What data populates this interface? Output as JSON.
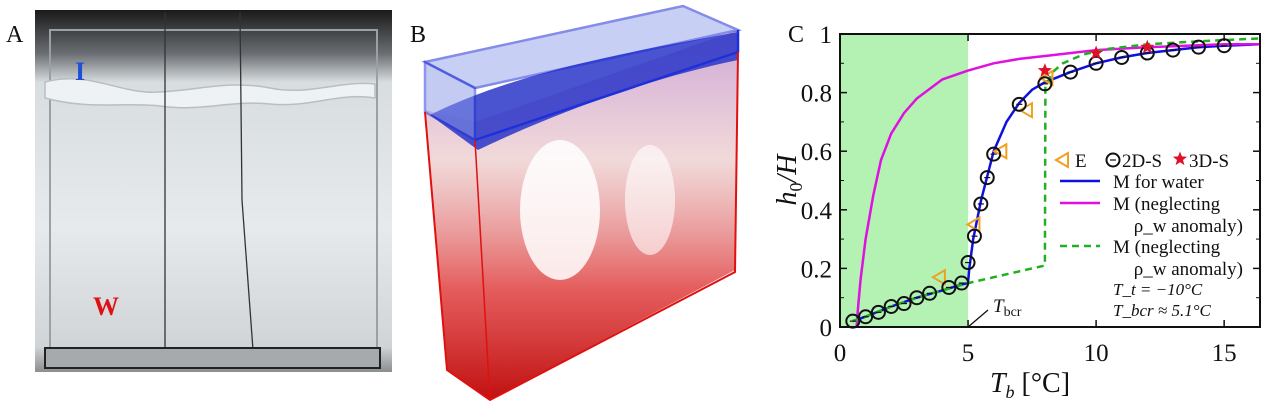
{
  "panels": {
    "a": {
      "label": "A",
      "ice_label": "I",
      "water_label": "W",
      "ice_color": "#1f4fd8",
      "water_color": "#e01010"
    },
    "b": {
      "label": "B",
      "ice_color": "#2a35c8",
      "water_color": "#d81818"
    },
    "c": {
      "label": "C"
    }
  },
  "chart_data": {
    "type": "scatter",
    "xlabel": "T_b [°C]",
    "xlabel_main": "T",
    "xlabel_sub": "b",
    "xlabel_unit": " [°C]",
    "ylabel_main": "h",
    "ylabel_sub": "0",
    "ylabel_rest": "/H",
    "xlim": [
      0,
      16.4
    ],
    "ylim": [
      0,
      1
    ],
    "xticks": [
      0,
      5,
      10,
      15
    ],
    "yticks": [
      0,
      0.2,
      0.4,
      0.6,
      0.8,
      1
    ],
    "ytick_labels": [
      "0",
      "0.2",
      "0.4",
      "0.6",
      "0.8",
      "1"
    ],
    "shaded_region": {
      "x": [
        0,
        5
      ],
      "color": "#b4f2b4"
    },
    "annotation": {
      "main": "T",
      "sub": "bcr",
      "x": 5
    },
    "legend": {
      "position": "right",
      "entries": [
        {
          "label": "E",
          "marker": "triangle-left",
          "color": "#f0a020"
        },
        {
          "label": "2D-S",
          "marker": "circle",
          "color": "#111111"
        },
        {
          "label": "3D-S",
          "marker": "star",
          "color": "#e0102a"
        },
        {
          "label": "M for water",
          "line": "solid",
          "color": "#1010e0"
        },
        {
          "label": "M (neglecting",
          "label2": "ρ_w anomaly)",
          "line": "solid",
          "color": "#e010e0"
        },
        {
          "label": "M (neglecting",
          "label2": "ρ_w anomaly)",
          "line": "dashed",
          "color": "#20b020"
        }
      ],
      "notes": [
        "T_t = −10°C",
        "T_bcr ≈ 5.1°C"
      ]
    },
    "series": [
      {
        "name": "E",
        "kind": "marker",
        "marker": "triangle-left",
        "color": "#f0a020",
        "x": [
          3.9,
          5.25,
          6.3,
          7.3,
          8.1
        ],
        "y": [
          0.17,
          0.35,
          0.6,
          0.74,
          0.85
        ]
      },
      {
        "name": "2D-S",
        "kind": "marker",
        "marker": "circle",
        "color": "#111111",
        "x": [
          0.5,
          1,
          1.5,
          2,
          2.5,
          3,
          3.5,
          4.25,
          4.75,
          5,
          5.25,
          5.5,
          5.75,
          6,
          7,
          8,
          9,
          10,
          11,
          12,
          13,
          14,
          15
        ],
        "y": [
          0.02,
          0.035,
          0.05,
          0.07,
          0.08,
          0.1,
          0.115,
          0.135,
          0.15,
          0.22,
          0.31,
          0.42,
          0.51,
          0.59,
          0.76,
          0.83,
          0.87,
          0.9,
          0.92,
          0.935,
          0.945,
          0.955,
          0.96
        ]
      },
      {
        "name": "3D-S",
        "kind": "marker",
        "marker": "star",
        "color": "#e0102a",
        "x": [
          8,
          10,
          12
        ],
        "y": [
          0.875,
          0.935,
          0.955
        ]
      },
      {
        "name": "M for water",
        "kind": "line",
        "dash": false,
        "color": "#1010e0",
        "x": [
          0.5,
          1,
          2,
          3,
          4,
          4.75,
          5.0,
          5.05,
          5.2,
          5.5,
          6,
          6.5,
          7,
          7.5,
          8,
          9,
          10,
          11,
          12,
          13,
          14,
          15,
          16.4
        ],
        "y": [
          0.02,
          0.035,
          0.07,
          0.1,
          0.125,
          0.145,
          0.15,
          0.2,
          0.3,
          0.43,
          0.6,
          0.7,
          0.765,
          0.81,
          0.835,
          0.87,
          0.9,
          0.92,
          0.935,
          0.945,
          0.955,
          0.96,
          0.965
        ]
      },
      {
        "name": "M (neglecting ρ_w anomaly)",
        "kind": "line",
        "dash": false,
        "color": "#e010e0",
        "x": [
          0.65,
          0.7,
          0.8,
          1,
          1.3,
          1.6,
          2,
          2.5,
          3,
          4,
          5,
          6,
          7,
          8,
          10,
          12,
          15,
          16.4
        ],
        "y": [
          0,
          0.06,
          0.16,
          0.3,
          0.45,
          0.57,
          0.66,
          0.73,
          0.78,
          0.845,
          0.875,
          0.9,
          0.915,
          0.925,
          0.945,
          0.955,
          0.965,
          0.965
        ]
      },
      {
        "name": "M (neglecting ρ_w anomaly)",
        "kind": "line",
        "dash": true,
        "color": "#20b020",
        "x": [
          0.5,
          1,
          2,
          3,
          4,
          5,
          8,
          8.02,
          8.3,
          8.7,
          9.5,
          10.5,
          12,
          14,
          16.4
        ],
        "y": [
          0.02,
          0.035,
          0.07,
          0.1,
          0.125,
          0.15,
          0.21,
          0.82,
          0.87,
          0.9,
          0.93,
          0.95,
          0.965,
          0.975,
          0.985
        ]
      }
    ]
  }
}
